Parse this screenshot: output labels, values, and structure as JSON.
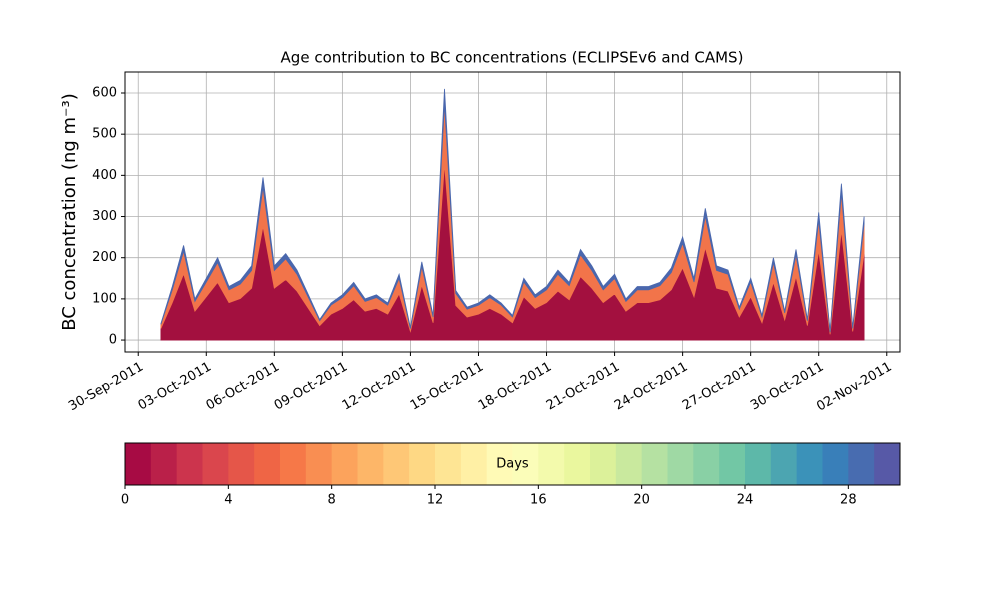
{
  "chart_data": {
    "type": "stacked_area",
    "title": "Age contribution to BC concentrations (ECLIPSEv6 and CAMS)",
    "ylabel": "BC concentration (ng m⁻³)",
    "x": [
      "2011-10-01 00:00",
      "2011-10-01 12:00",
      "2011-10-02 00:00",
      "2011-10-02 12:00",
      "2011-10-03 00:00",
      "2011-10-03 12:00",
      "2011-10-04 00:00",
      "2011-10-04 12:00",
      "2011-10-05 00:00",
      "2011-10-05 12:00",
      "2011-10-06 00:00",
      "2011-10-06 12:00",
      "2011-10-07 00:00",
      "2011-10-07 12:00",
      "2011-10-08 00:00",
      "2011-10-08 12:00",
      "2011-10-09 00:00",
      "2011-10-09 12:00",
      "2011-10-10 00:00",
      "2011-10-10 12:00",
      "2011-10-11 00:00",
      "2011-10-11 12:00",
      "2011-10-12 00:00",
      "2011-10-12 12:00",
      "2011-10-13 00:00",
      "2011-10-13 12:00",
      "2011-10-14 00:00",
      "2011-10-14 12:00",
      "2011-10-15 00:00",
      "2011-10-15 12:00",
      "2011-10-16 00:00",
      "2011-10-16 12:00",
      "2011-10-17 00:00",
      "2011-10-17 12:00",
      "2011-10-18 00:00",
      "2011-10-18 12:00",
      "2011-10-19 00:00",
      "2011-10-19 12:00",
      "2011-10-20 00:00",
      "2011-10-20 12:00",
      "2011-10-21 00:00",
      "2011-10-21 12:00",
      "2011-10-22 00:00",
      "2011-10-22 12:00",
      "2011-10-23 00:00",
      "2011-10-23 12:00",
      "2011-10-24 00:00",
      "2011-10-24 12:00",
      "2011-10-25 00:00",
      "2011-10-25 12:00",
      "2011-10-26 00:00",
      "2011-10-26 12:00",
      "2011-10-27 00:00",
      "2011-10-27 12:00",
      "2011-10-28 00:00",
      "2011-10-28 12:00",
      "2011-10-29 00:00",
      "2011-10-29 12:00",
      "2011-10-30 00:00",
      "2011-10-30 12:00",
      "2011-10-31 00:00",
      "2011-10-31 12:00",
      "2011-11-01 00:00"
    ],
    "series": [
      {
        "color": "#a3103f",
        "values": [
          28,
          91,
          161,
          70,
          105,
          140,
          91,
          101,
          126,
          276,
          126,
          147,
          119,
          77,
          35,
          63,
          77,
          98,
          70,
          77,
          63,
          112,
          21,
          133,
          42,
          427,
          84,
          56,
          63,
          77,
          63,
          42,
          105,
          77,
          91,
          119,
          98,
          154,
          126,
          91,
          112,
          70,
          91,
          91,
          98,
          122,
          175,
          105,
          224,
          126,
          119,
          56,
          105,
          42,
          140,
          49,
          154,
          35,
          217,
          14,
          266,
          21,
          210
        ]
      },
      {
        "color": "#f2744a",
        "values": [
          10,
          31,
          55,
          24,
          36,
          48,
          31,
          35,
          43,
          95,
          43,
          50,
          41,
          26,
          12,
          22,
          26,
          34,
          24,
          26,
          22,
          38,
          7,
          46,
          14,
          146,
          29,
          19,
          22,
          26,
          22,
          14,
          36,
          26,
          31,
          41,
          34,
          53,
          43,
          31,
          38,
          24,
          31,
          31,
          34,
          42,
          60,
          36,
          77,
          43,
          41,
          19,
          36,
          14,
          48,
          17,
          53,
          12,
          74,
          5,
          91,
          7,
          72
        ]
      },
      {
        "color": "#4a67ad",
        "values": [
          2,
          8,
          14,
          6,
          9,
          12,
          8,
          9,
          11,
          24,
          11,
          13,
          10,
          7,
          3,
          5,
          7,
          8,
          6,
          7,
          5,
          10,
          2,
          11,
          4,
          37,
          7,
          5,
          5,
          7,
          5,
          4,
          9,
          7,
          8,
          10,
          8,
          13,
          11,
          8,
          10,
          6,
          8,
          8,
          8,
          11,
          15,
          9,
          19,
          11,
          10,
          5,
          9,
          4,
          12,
          4,
          13,
          3,
          19,
          1,
          23,
          2,
          18
        ]
      }
    ],
    "xlim": [
      "2011-09-29 10:00",
      "2011-11-02 14:00"
    ],
    "xticks": [
      {
        "value": "2011-09-30",
        "label": "30-Sep-2011"
      },
      {
        "value": "2011-10-03",
        "label": "03-Oct-2011"
      },
      {
        "value": "2011-10-06",
        "label": "06-Oct-2011"
      },
      {
        "value": "2011-10-09",
        "label": "09-Oct-2011"
      },
      {
        "value": "2011-10-12",
        "label": "12-Oct-2011"
      },
      {
        "value": "2011-10-15",
        "label": "15-Oct-2011"
      },
      {
        "value": "2011-10-18",
        "label": "18-Oct-2011"
      },
      {
        "value": "2011-10-21",
        "label": "21-Oct-2011"
      },
      {
        "value": "2011-10-24",
        "label": "24-Oct-2011"
      },
      {
        "value": "2011-10-27",
        "label": "27-Oct-2011"
      },
      {
        "value": "2011-10-30",
        "label": "30-Oct-2011"
      },
      {
        "value": "2011-11-02",
        "label": "02-Nov-2011"
      }
    ],
    "ylim": [
      -29,
      651
    ],
    "yticks": [
      0,
      100,
      200,
      300,
      400,
      500,
      600
    ],
    "grid": true,
    "colorbar": {
      "label": "Days",
      "lim": [
        0,
        30
      ],
      "ticks": [
        0,
        4,
        8,
        12,
        16,
        20,
        24,
        28
      ],
      "colormap": [
        "#9e0142",
        "#d53e4f",
        "#f46d43",
        "#fdae61",
        "#fee08b",
        "#ffffbf",
        "#e6f598",
        "#abdda4",
        "#66c2a5",
        "#3288bd",
        "#5e4fa2"
      ]
    }
  }
}
